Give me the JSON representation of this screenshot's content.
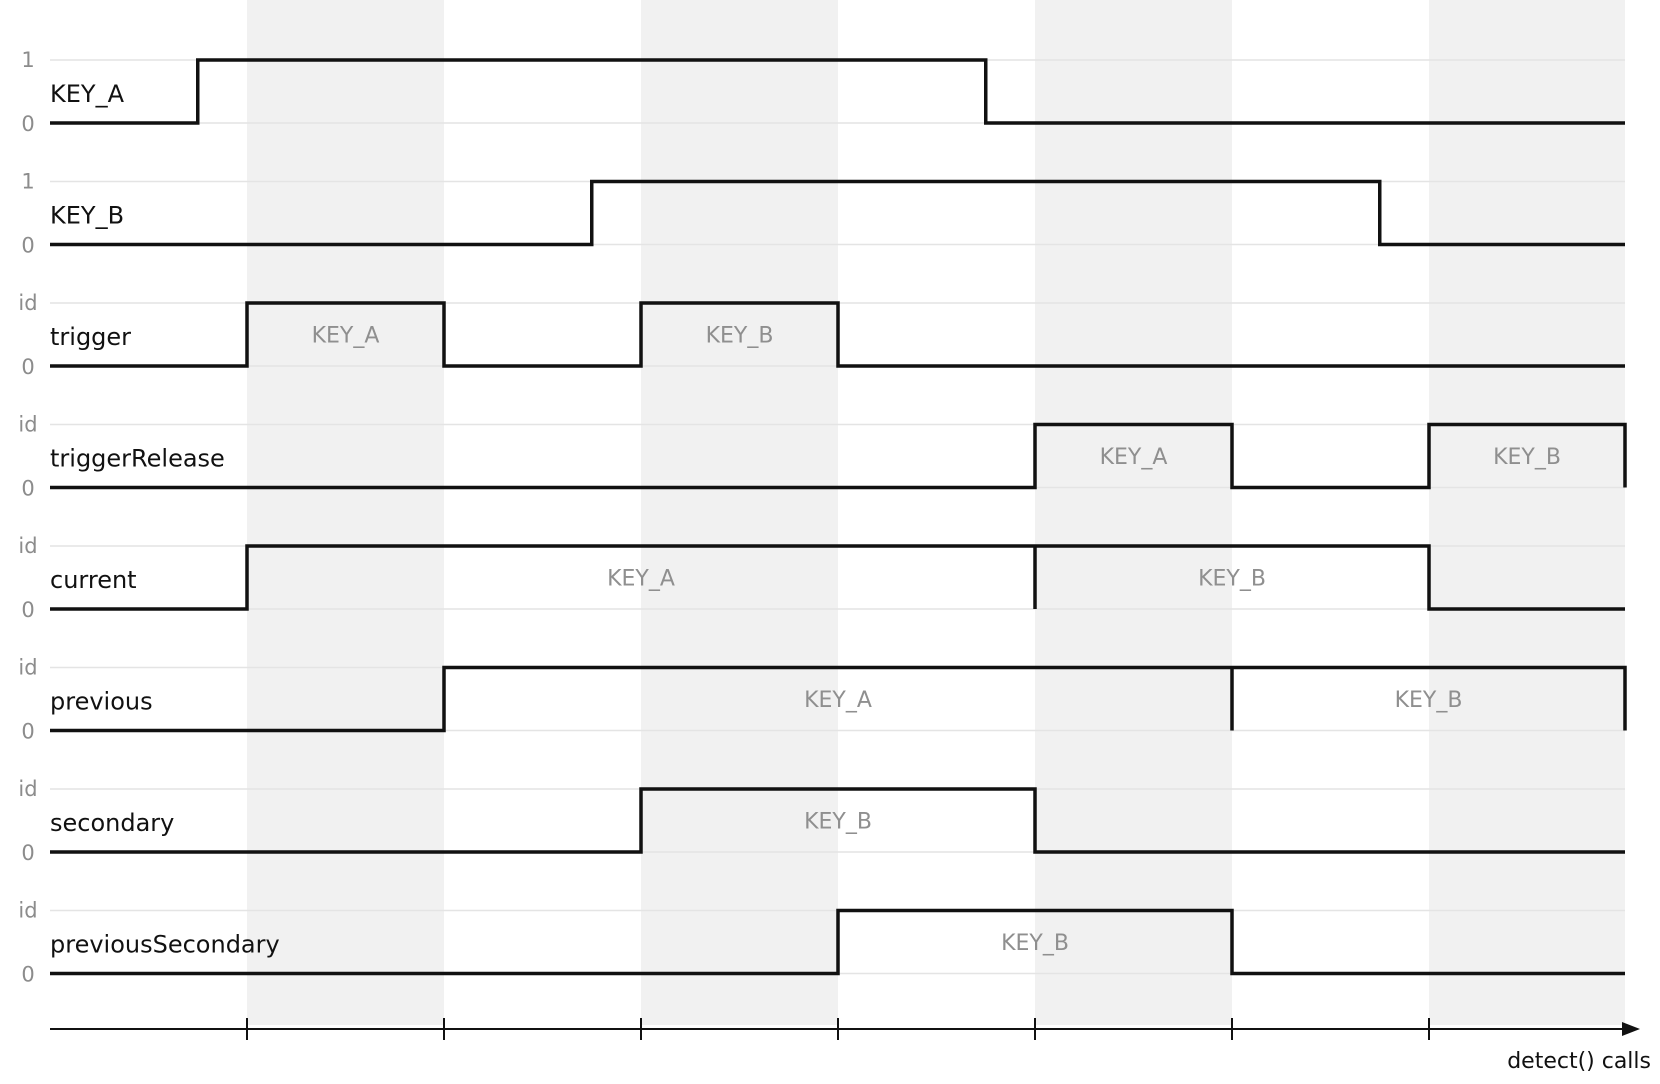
{
  "chart_data": {
    "type": "timing",
    "x_axis": {
      "label": "detect() calls",
      "ticks": [
        1,
        2,
        3,
        4,
        5,
        6,
        7
      ],
      "range": [
        0,
        8
      ]
    },
    "shaded_intervals": [
      [
        1,
        2
      ],
      [
        3,
        4
      ],
      [
        5,
        6
      ],
      [
        7,
        8
      ]
    ],
    "signals": [
      {
        "name": "KEY_A",
        "high_label": "1",
        "low_label": "0",
        "segments": [
          {
            "start": 0.75,
            "end": 4.75,
            "value": ""
          }
        ]
      },
      {
        "name": "KEY_B",
        "high_label": "1",
        "low_label": "0",
        "segments": [
          {
            "start": 2.75,
            "end": 6.75,
            "value": ""
          }
        ]
      },
      {
        "name": "trigger",
        "high_label": "id",
        "low_label": "0",
        "segments": [
          {
            "start": 1,
            "end": 2,
            "value": "KEY_A"
          },
          {
            "start": 3,
            "end": 4,
            "value": "KEY_B"
          }
        ]
      },
      {
        "name": "triggerRelease",
        "high_label": "id",
        "low_label": "0",
        "segments": [
          {
            "start": 5,
            "end": 6,
            "value": "KEY_A"
          },
          {
            "start": 7,
            "end": 8,
            "value": "KEY_B"
          }
        ]
      },
      {
        "name": "current",
        "high_label": "id",
        "low_label": "0",
        "segments": [
          {
            "start": 1,
            "end": 5,
            "value": "KEY_A"
          },
          {
            "start": 5,
            "end": 7,
            "value": "KEY_B"
          }
        ]
      },
      {
        "name": "previous",
        "high_label": "id",
        "low_label": "0",
        "segments": [
          {
            "start": 2,
            "end": 6,
            "value": "KEY_A"
          },
          {
            "start": 6,
            "end": 8,
            "value": "KEY_B"
          }
        ]
      },
      {
        "name": "secondary",
        "high_label": "id",
        "low_label": "0",
        "segments": [
          {
            "start": 3,
            "end": 5,
            "value": "KEY_B"
          }
        ]
      },
      {
        "name": "previousSecondary",
        "high_label": "id",
        "low_label": "0",
        "segments": [
          {
            "start": 4,
            "end": 6,
            "value": "KEY_B"
          }
        ]
      }
    ]
  }
}
